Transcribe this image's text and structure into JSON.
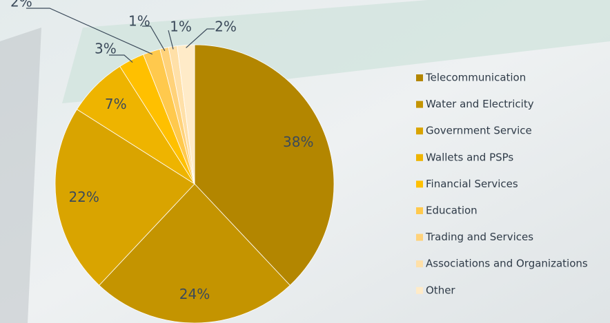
{
  "chart_data": {
    "type": "pie",
    "categories": [
      "Telecommunication",
      "Water and Electricity",
      "Government Service",
      "Wallets and PSPs",
      "Financial Services",
      "Education",
      "Trading and Services",
      "Associations and Organizations",
      "Other"
    ],
    "values": [
      38,
      24,
      22,
      7,
      3,
      2,
      1,
      1,
      2
    ],
    "value_labels": [
      "38%",
      "24%",
      "22%",
      "7%",
      "3%",
      "2%",
      "1%",
      "1%",
      "2%"
    ],
    "colors": [
      "#b38600",
      "#c49400",
      "#d9a400",
      "#eeb400",
      "#ffc000",
      "#ffc94d",
      "#ffd27a",
      "#ffe0a8",
      "#ffebc8"
    ],
    "legend": "right"
  }
}
